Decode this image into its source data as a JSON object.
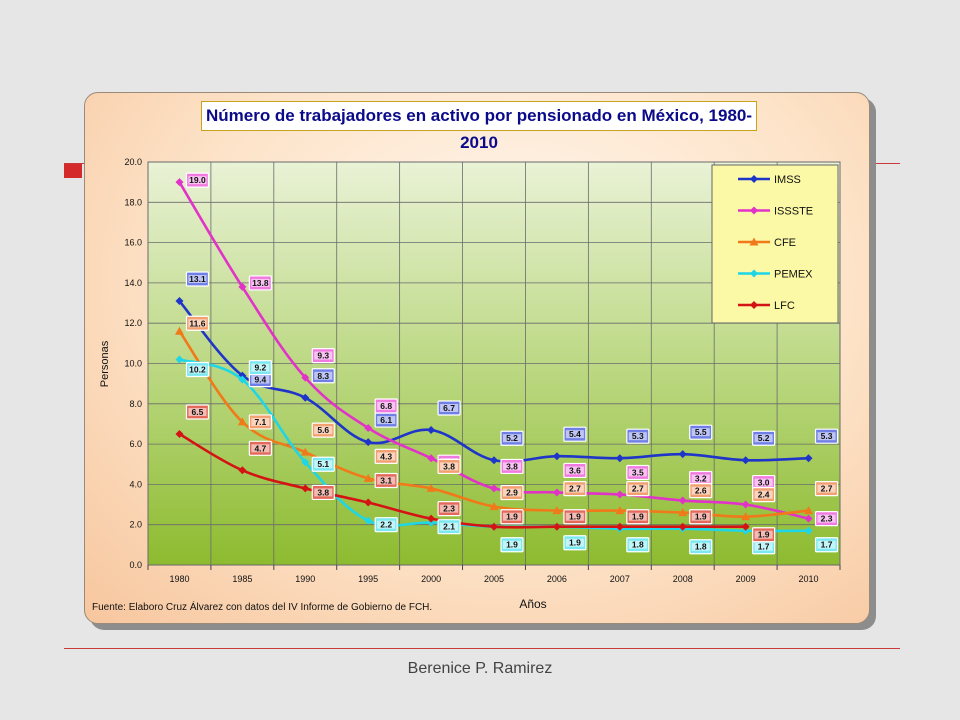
{
  "slide": {
    "footer_name": "Berenice P. Ramirez"
  },
  "chart_data": {
    "type": "line",
    "title": "Número de trabajadores en activo por pensionado en México, 1980-2010",
    "xlabel": "Años",
    "ylabel": "Personas",
    "source": "Fuente: Elaboro Cruz Álvarez con datos del IV Informe de Gobierno de FCH.",
    "categories": [
      "1980",
      "1985",
      "1990",
      "1995",
      "2000",
      "2005",
      "2006",
      "2007",
      "2008",
      "2009",
      "2010"
    ],
    "ylim": [
      0,
      20
    ],
    "yticks": [
      "0.0",
      "2.0",
      "4.0",
      "6.0",
      "8.0",
      "10.0",
      "12.0",
      "14.0",
      "16.0",
      "18.0",
      "20.0"
    ],
    "grid": true,
    "legend_position": "top-right",
    "series": [
      {
        "name": "IMSS",
        "color": "#1f35c9",
        "label_color": "#6f7fe6",
        "marker": "diamond",
        "values": [
          13.1,
          9.4,
          8.3,
          6.1,
          6.7,
          5.2,
          5.4,
          5.3,
          5.5,
          5.2,
          5.3
        ]
      },
      {
        "name": "ISSSTE",
        "color": "#e233c9",
        "label_color": "#f07ae0",
        "marker": "diamond",
        "values": [
          19.0,
          13.8,
          9.3,
          6.8,
          5.3,
          3.8,
          3.6,
          3.5,
          3.2,
          3.0,
          2.3
        ]
      },
      {
        "name": "CFE",
        "color": "#f07a1a",
        "label_color": "#f3a070",
        "marker": "triangle",
        "values": [
          11.6,
          7.1,
          5.6,
          4.3,
          3.8,
          2.9,
          2.7,
          2.7,
          2.6,
          2.4,
          2.7
        ]
      },
      {
        "name": "PEMEX",
        "color": "#1fd6e6",
        "label_color": "#7ae8f0",
        "marker": "diamond",
        "values": [
          10.2,
          9.2,
          5.1,
          2.2,
          2.1,
          1.9,
          1.9,
          1.8,
          1.8,
          1.7,
          1.7
        ]
      },
      {
        "name": "LFC",
        "color": "#d41414",
        "label_color": "#e36a5a",
        "marker": "diamond",
        "values": [
          6.5,
          4.7,
          3.8,
          3.1,
          2.3,
          1.9,
          1.9,
          1.9,
          1.9,
          1.9,
          null
        ]
      }
    ]
  }
}
